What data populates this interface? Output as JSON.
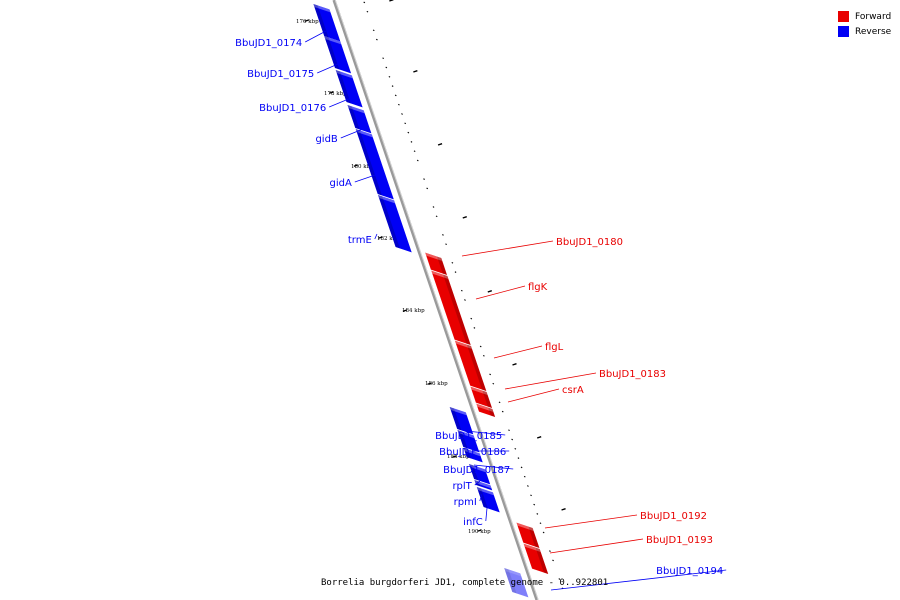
{
  "colors": {
    "forward": "#e80000",
    "reverse": "#0000f5",
    "backbone": "#9a9a9a"
  },
  "legend": [
    {
      "label": "Forward",
      "color": "#e80000"
    },
    {
      "label": "Reverse",
      "color": "#0000f5"
    }
  ],
  "footer": {
    "text": "Borrelia burgdorferi JD1, complete genome - 0..922801"
  },
  "kbp_labels": [
    "176 kbp",
    "178 kbp",
    "180 kbp",
    "182 kbp",
    "184 kbp",
    "186 kbp",
    "188 kbp",
    "190 kbp"
  ],
  "genes": [
    {
      "name": "BbuJD1_0174",
      "strand": "reverse"
    },
    {
      "name": "BbuJD1_0175",
      "strand": "reverse"
    },
    {
      "name": "BbuJD1_0176",
      "strand": "reverse"
    },
    {
      "name": "gidB",
      "strand": "reverse"
    },
    {
      "name": "gidA",
      "strand": "reverse"
    },
    {
      "name": "trmE",
      "strand": "reverse"
    },
    {
      "name": "BbuJD1_0180",
      "strand": "forward"
    },
    {
      "name": "flgK",
      "strand": "forward"
    },
    {
      "name": "flgL",
      "strand": "forward"
    },
    {
      "name": "BbuJD1_0183",
      "strand": "forward"
    },
    {
      "name": "csrA",
      "strand": "forward"
    },
    {
      "name": "BbuJD1_0185",
      "strand": "reverse"
    },
    {
      "name": "BbuJD1_0186",
      "strand": "reverse"
    },
    {
      "name": "BbuJD1_0187",
      "strand": "reverse"
    },
    {
      "name": "rplT",
      "strand": "reverse"
    },
    {
      "name": "rpmI",
      "strand": "reverse"
    },
    {
      "name": "infC",
      "strand": "reverse"
    },
    {
      "name": "BbuJD1_0192",
      "strand": "forward"
    },
    {
      "name": "BbuJD1_0193",
      "strand": "forward"
    },
    {
      "name": "BbuJD1_0194",
      "strand": "reverse"
    }
  ]
}
